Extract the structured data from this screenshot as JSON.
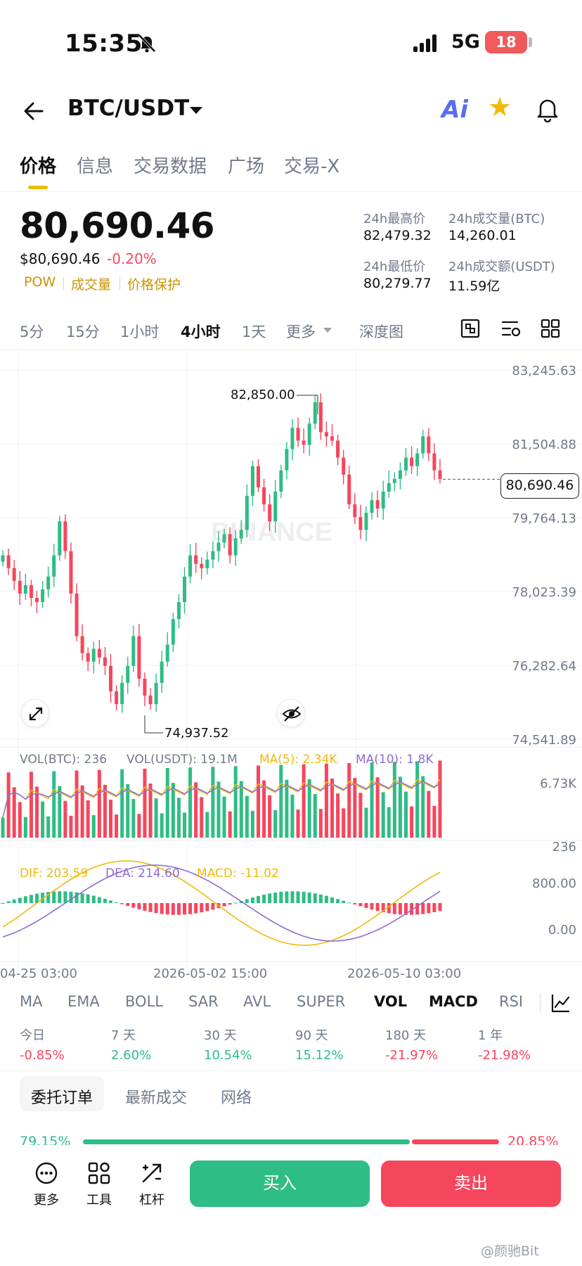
{
  "status": {
    "time": "15:35",
    "network": "5G",
    "battery": "18"
  },
  "header": {
    "pair": "BTC/USDT",
    "ai_label": "Ai"
  },
  "tabs": [
    "价格",
    "信息",
    "交易数据",
    "广场",
    "交易-X"
  ],
  "price": {
    "last": "80,690.46",
    "usd": "$80,690.46",
    "change": "-0.20%",
    "chips": [
      "POW",
      "成交量",
      "价格保护"
    ],
    "stats": [
      {
        "label": "24h最高价",
        "value": "82,479.32"
      },
      {
        "label": "24h成交量(BTC)",
        "value": "14,260.01"
      },
      {
        "label": "24h最低价",
        "value": "80,279.77"
      },
      {
        "label": "24h成交额(USDT)",
        "value": "11.59亿"
      }
    ]
  },
  "intervals": [
    "5分",
    "15分",
    "1小时",
    "4小时",
    "1天",
    "更多",
    "深度图"
  ],
  "active_interval": "4小时",
  "chart_data": {
    "type": "candlestick",
    "y_axis": [
      "83,245.63",
      "81,504.88",
      "79,764.13",
      "78,023.39",
      "76,282.64",
      "74,541.89"
    ],
    "ylim": [
      74541.89,
      83245.63
    ],
    "last_price": "80,690.46",
    "high_marker": "82,850.00",
    "low_marker": "74,937.52",
    "close_series": [
      78900,
      78600,
      78300,
      78000,
      78200,
      77900,
      77800,
      78100,
      78400,
      78900,
      79700,
      79000,
      78000,
      77000,
      76600,
      76400,
      76700,
      76500,
      76300,
      75700,
      75400,
      75900,
      76300,
      77000,
      76000,
      75600,
      75400,
      75900,
      76400,
      76800,
      77400,
      77800,
      78400,
      78900,
      78700,
      78600,
      78800,
      79000,
      79200,
      79400,
      78900,
      79300,
      79500,
      80300,
      81000,
      80500,
      80100,
      79700,
      80400,
      80900,
      81400,
      81900,
      81600,
      81500,
      82000,
      82500,
      81800,
      81700,
      81600,
      81200,
      80800,
      80100,
      79800,
      79500,
      79900,
      80200,
      80000,
      80400,
      80600,
      80700,
      80900,
      81200,
      81000,
      81300,
      81700,
      81300,
      80900,
      80700
    ],
    "volume": {
      "labels": [
        "VOL(BTC): 236",
        "VOL(USDT): 19.1M",
        "MA(5): 2.34K",
        "MA(10): 1.8K"
      ],
      "axis": [
        "6.73K",
        "236"
      ]
    },
    "macd": {
      "labels": [
        "DIF: 203.59",
        "DEA: 214.60",
        "MACD: -11.02"
      ],
      "axis": [
        "800.00",
        "0.00"
      ]
    },
    "x_axis": [
      "04-25 03:00",
      "2026-05-02 15:00",
      "2026-05-10 03:00"
    ]
  },
  "watermark_logo": "BINANCE",
  "indicators": [
    "MA",
    "EMA",
    "BOLL",
    "SAR",
    "AVL",
    "SUPER",
    "VOL",
    "MACD",
    "RSI"
  ],
  "performance": [
    {
      "label": "今日",
      "value": "-0.85%"
    },
    {
      "label": "7 天",
      "value": "2.60%"
    },
    {
      "label": "30 天",
      "value": "10.54%"
    },
    {
      "label": "90 天",
      "value": "15.12%"
    },
    {
      "label": "180 天",
      "value": "-21.97%"
    },
    {
      "label": "1 年",
      "value": "-21.98%"
    }
  ],
  "order_tabs": [
    "委托订单",
    "最新成交",
    "网络"
  ],
  "ratio": {
    "buy": "79.15%",
    "sell": "20.85%"
  },
  "bottom": {
    "more": "更多",
    "tools": "工具",
    "leverage": "杠杆",
    "buy": "买入",
    "sell": "卖出"
  },
  "watermark": "@颜驰Bit",
  "colors": {
    "up": "#2ebd85",
    "down": "#f6465d",
    "accent": "#f0b90b",
    "ma5": "#f0b90b",
    "ma10": "#8e6ccf"
  }
}
